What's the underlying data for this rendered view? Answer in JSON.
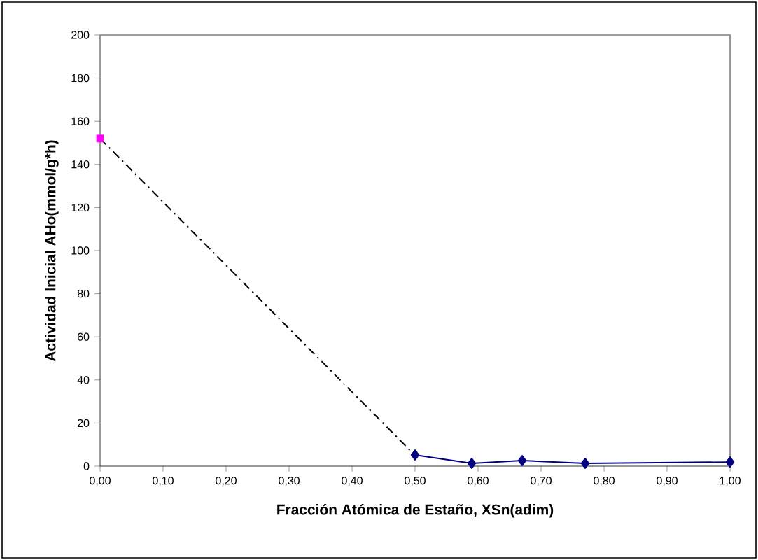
{
  "chart_data": {
    "type": "line",
    "xlabel": "Fracción Atómica de Estaño, XSn(adim)",
    "ylabel": "Actividad Inicial AHo(mmol/g*h)",
    "xlim": [
      0,
      1
    ],
    "ylim": [
      0,
      200
    ],
    "xticks": [
      {
        "value": 0,
        "label": "0,00"
      },
      {
        "value": 0.1,
        "label": "0,10"
      },
      {
        "value": 0.2,
        "label": "0,20"
      },
      {
        "value": 0.3,
        "label": "0,30"
      },
      {
        "value": 0.4,
        "label": "0,40"
      },
      {
        "value": 0.5,
        "label": "0,50"
      },
      {
        "value": 0.6,
        "label": "0,60"
      },
      {
        "value": 0.7,
        "label": "0,70"
      },
      {
        "value": 0.8,
        "label": "0,80"
      },
      {
        "value": 0.9,
        "label": "0,90"
      },
      {
        "value": 1,
        "label": "1,00"
      }
    ],
    "yticks": [
      0,
      20,
      40,
      60,
      80,
      100,
      120,
      140,
      160,
      180,
      200
    ],
    "series": [
      {
        "type": "line",
        "color": "#000000",
        "x": [
          0,
          0.5
        ],
        "values": [
          152,
          5
        ],
        "marker": "none",
        "line_style": "dashdot"
      },
      {
        "type": "scatter",
        "color": "#ff00ff",
        "x": [
          0
        ],
        "values": [
          152
        ],
        "marker": "square"
      },
      {
        "color": "#000080",
        "x": [
          0.5,
          0.59,
          0.67,
          0.77,
          1.0
        ],
        "values": [
          5.2,
          1.3,
          2.6,
          1.3,
          1.9
        ],
        "marker": "diamond",
        "line_style": "solid"
      }
    ]
  }
}
